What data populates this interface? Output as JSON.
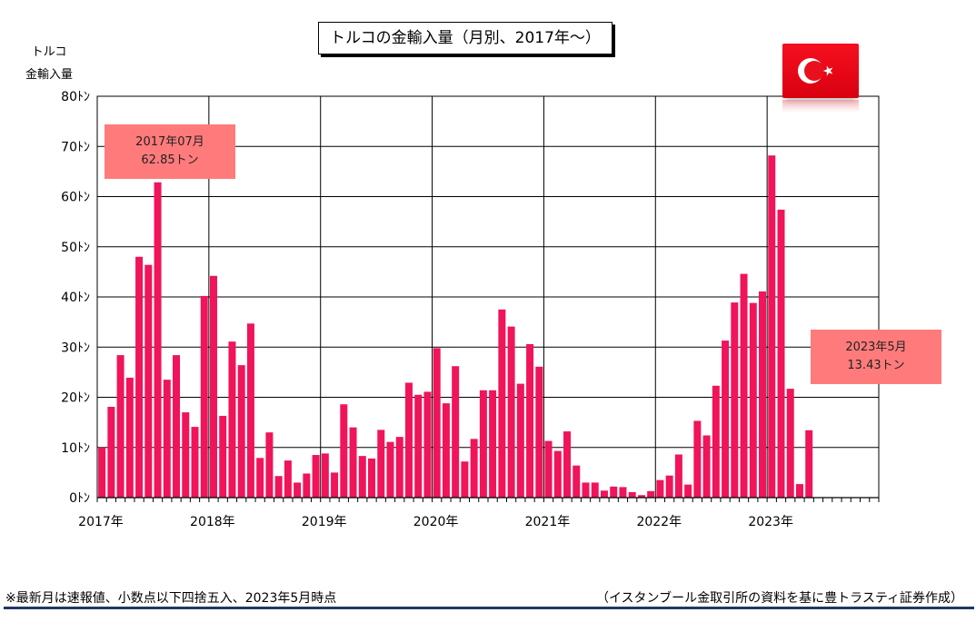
{
  "title": "トルコの金輸入量（月別、2017年～）",
  "y_axis_label_line1": "トルコ",
  "y_axis_label_line2": "金輸入量",
  "callouts": [
    {
      "line1": "2017年07月",
      "line2": "62.85トン"
    },
    {
      "line1": "2023年5月",
      "line2": "13.43トン"
    }
  ],
  "flag": {
    "name": "turkey-flag",
    "background": "#e30a17",
    "symbol_color": "#ffffff"
  },
  "footnote_left": "※最新月は速報値、小数点以下四捨五入、2023年5月時点",
  "footnote_right": "（イスタンブール金取引所の資料を基に豊トラスティ証券作成）",
  "colors": {
    "bar": "#f0145a",
    "grid": "#000000",
    "callout": "#ff7b7b",
    "rule": "#1f3864"
  },
  "chart_data": {
    "type": "bar",
    "title": "トルコの金輸入量（月別、2017年～）",
    "ylabel": "トルコ 金輸入量",
    "y_unit": "ﾄﾝ",
    "ylim": [
      0,
      80
    ],
    "yticks": [
      0,
      10,
      20,
      30,
      40,
      50,
      60,
      70,
      80
    ],
    "ytick_labels": [
      "0ﾄﾝ",
      "10ﾄﾝ",
      "20ﾄﾝ",
      "30ﾄﾝ",
      "40ﾄﾝ",
      "50ﾄﾝ",
      "60ﾄﾝ",
      "70ﾄﾝ",
      "80ﾄﾝ"
    ],
    "x_year_labels": [
      "2017年",
      "2018年",
      "2019年",
      "2020年",
      "2021年",
      "2022年",
      "2023年"
    ],
    "months_on_axis": 84,
    "start": "2017-01",
    "grid": true,
    "values": [
      10.0,
      18.1,
      28.4,
      23.9,
      48.0,
      46.4,
      62.85,
      23.5,
      28.4,
      17.0,
      14.1,
      40.2,
      44.2,
      16.3,
      31.1,
      26.4,
      34.7,
      7.9,
      13.0,
      4.3,
      7.4,
      3.0,
      4.8,
      8.5,
      8.8,
      5.0,
      18.6,
      14.0,
      8.3,
      7.8,
      13.5,
      11.1,
      12.1,
      22.9,
      20.5,
      21.1,
      29.8,
      18.8,
      26.2,
      7.2,
      11.7,
      21.4,
      21.4,
      37.5,
      34.1,
      22.7,
      30.6,
      26.1,
      11.3,
      9.3,
      13.2,
      6.4,
      3.0,
      3.0,
      1.4,
      2.2,
      2.1,
      1.1,
      0.5,
      1.3,
      3.5,
      4.4,
      8.6,
      2.6,
      15.3,
      12.4,
      22.3,
      31.3,
      38.9,
      44.6,
      38.8,
      41.1,
      68.2,
      57.4,
      21.7,
      2.7,
      13.43
    ]
  }
}
